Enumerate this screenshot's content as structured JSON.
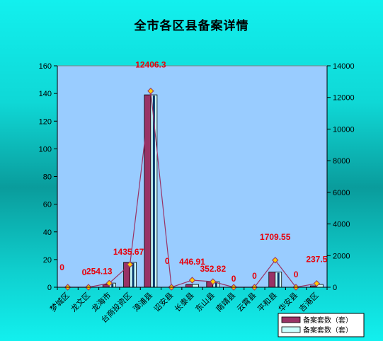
{
  "chart_data": {
    "type": "bar",
    "title": "全市各区县备案详情",
    "categories": [
      "梦城区",
      "龙文区",
      "龙海市",
      "台商投资区",
      "漳浦县",
      "诏安县",
      "长泰县",
      "东山县",
      "南靖县",
      "云霄县",
      "平和县",
      "华安县",
      "吉港区"
    ],
    "series": [
      {
        "name": "备案套数（套）",
        "type": "bar",
        "axis": "left",
        "color": "#993366",
        "values": [
          0,
          0,
          2,
          18,
          139,
          0,
          2,
          4,
          0,
          0,
          11,
          0,
          1
        ]
      },
      {
        "name": "备案套数（套）",
        "type": "bar",
        "axis": "left",
        "color": "#ccffff",
        "values": [
          0,
          0,
          3,
          18,
          139,
          0,
          2,
          4,
          0,
          0,
          11,
          0,
          2
        ]
      },
      {
        "name": "",
        "type": "line",
        "axis": "right",
        "color": "#993366",
        "values": [
          0,
          0,
          254.13,
          1435.67,
          12406.3,
          0,
          446.91,
          352.82,
          0,
          0,
          1709.55,
          0,
          237.5
        ]
      }
    ],
    "data_labels": [
      "0",
      "0",
      "254.13",
      "1435.67",
      "12406.3",
      "0",
      "446.91",
      "352.82",
      "0",
      "0",
      "1709.55",
      "0",
      "237.5"
    ],
    "ylim_left": [
      0,
      160
    ],
    "yticks_left": [
      0,
      20,
      40,
      60,
      80,
      100,
      120,
      140,
      160
    ],
    "ylim_right": [
      0,
      14000
    ],
    "yticks_right": [
      0,
      2000,
      4000,
      6000,
      8000,
      10000,
      12000,
      14000
    ],
    "grid": false,
    "legend_placement": "bottom-right",
    "colors": {
      "plot_bg": "#99ccff",
      "bar1": "#993366",
      "bar2": "#ccffff",
      "line": "#993366",
      "marker": "#ffcc00",
      "label": "#e8000b"
    }
  }
}
